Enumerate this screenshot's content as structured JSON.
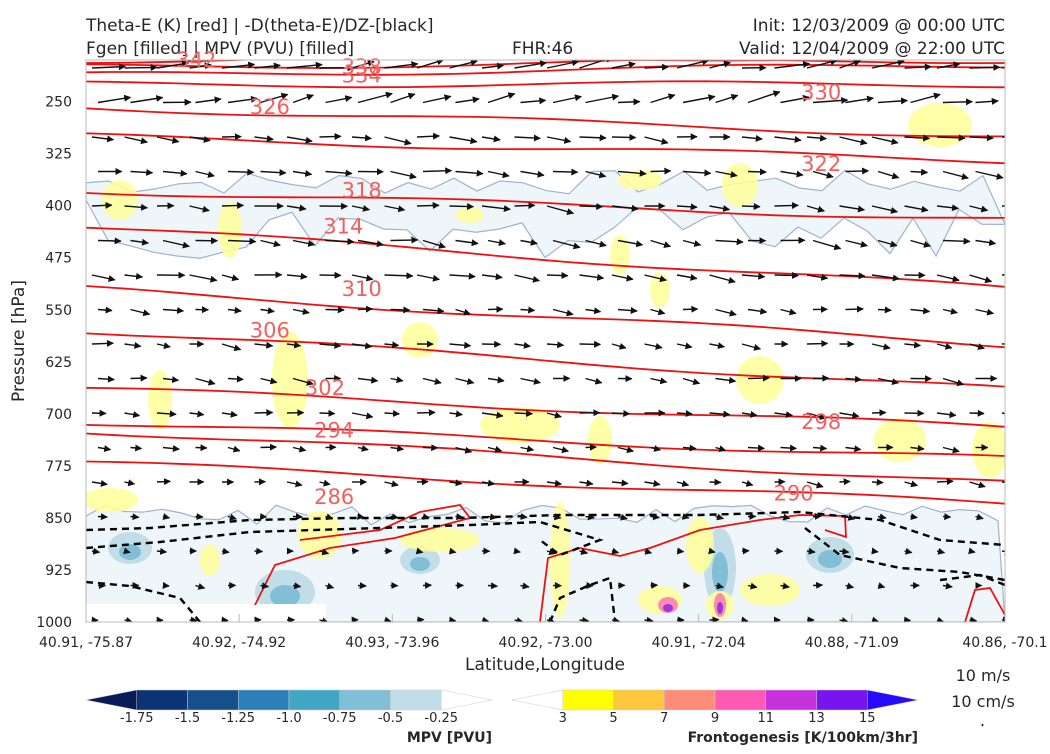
{
  "header": {
    "title_left_1": "Theta-E (K) [red] | -D(theta-E)/DZ-[black]",
    "title_left_2": "Fgen [filled] | MPV (PVU) [filled]",
    "fhr": "FHR:46",
    "init": "Init: 12/03/2009 @ 00:00 UTC",
    "valid": "Valid: 12/04/2009 @ 22:00 UTC"
  },
  "chart_data": {
    "type": "cross-section",
    "xlabel": "Latitude,Longitude",
    "ylabel": "Pressure [hPa]",
    "x_ticks": [
      "40.91, -75.87",
      "40.92, -74.92",
      "40.93, -73.96",
      "40.92, -73.00",
      "40.91, -72.04",
      "40.88, -71.09",
      "40.86, -70.1"
    ],
    "y_ticks": [
      250,
      325,
      400,
      475,
      550,
      625,
      700,
      775,
      850,
      925,
      1000
    ],
    "ylim": [
      1000,
      190
    ],
    "theta_e_contour_labels": [
      {
        "value": "342",
        "x_frac": 0.12,
        "p": 190
      },
      {
        "value": "338",
        "x_frac": 0.3,
        "p": 200
      },
      {
        "value": "334",
        "x_frac": 0.3,
        "p": 212
      },
      {
        "value": "330",
        "x_frac": 0.8,
        "p": 237
      },
      {
        "value": "326",
        "x_frac": 0.2,
        "p": 258
      },
      {
        "value": "322",
        "x_frac": 0.8,
        "p": 340
      },
      {
        "value": "318",
        "x_frac": 0.3,
        "p": 378
      },
      {
        "value": "314",
        "x_frac": 0.28,
        "p": 430
      },
      {
        "value": "310",
        "x_frac": 0.3,
        "p": 520
      },
      {
        "value": "306",
        "x_frac": 0.2,
        "p": 580
      },
      {
        "value": "302",
        "x_frac": 0.26,
        "p": 663
      },
      {
        "value": "298",
        "x_frac": 0.8,
        "p": 712
      },
      {
        "value": "294",
        "x_frac": 0.27,
        "p": 724
      },
      {
        "value": "290",
        "x_frac": 0.77,
        "p": 815
      },
      {
        "value": "286",
        "x_frac": 0.27,
        "p": 820
      }
    ],
    "mpv_colorbar": {
      "label": "MPV [PVU]",
      "ticks": [
        "-1.75",
        "-1.5",
        "-1.25",
        "-1.0",
        "-0.75",
        "-0.5",
        "-0.25"
      ],
      "colors": [
        "#081d58",
        "#0c3373",
        "#16508c",
        "#2c7fb8",
        "#41a6c4",
        "#80bfd6",
        "#c0dde8",
        "#ffffff"
      ]
    },
    "fgen_colorbar": {
      "label": "Frontogenesis [K/100km/3hr]",
      "ticks": [
        "3",
        "5",
        "7",
        "9",
        "11",
        "13",
        "15"
      ],
      "colors": [
        "#ffffff",
        "#ffff00",
        "#ffc83c",
        "#ff8c78",
        "#ff5ab4",
        "#c832dc",
        "#7814f0",
        "#280aff"
      ]
    },
    "wind_reference": {
      "label_1": "10 m/s",
      "label_2": "10 cm/s"
    }
  }
}
